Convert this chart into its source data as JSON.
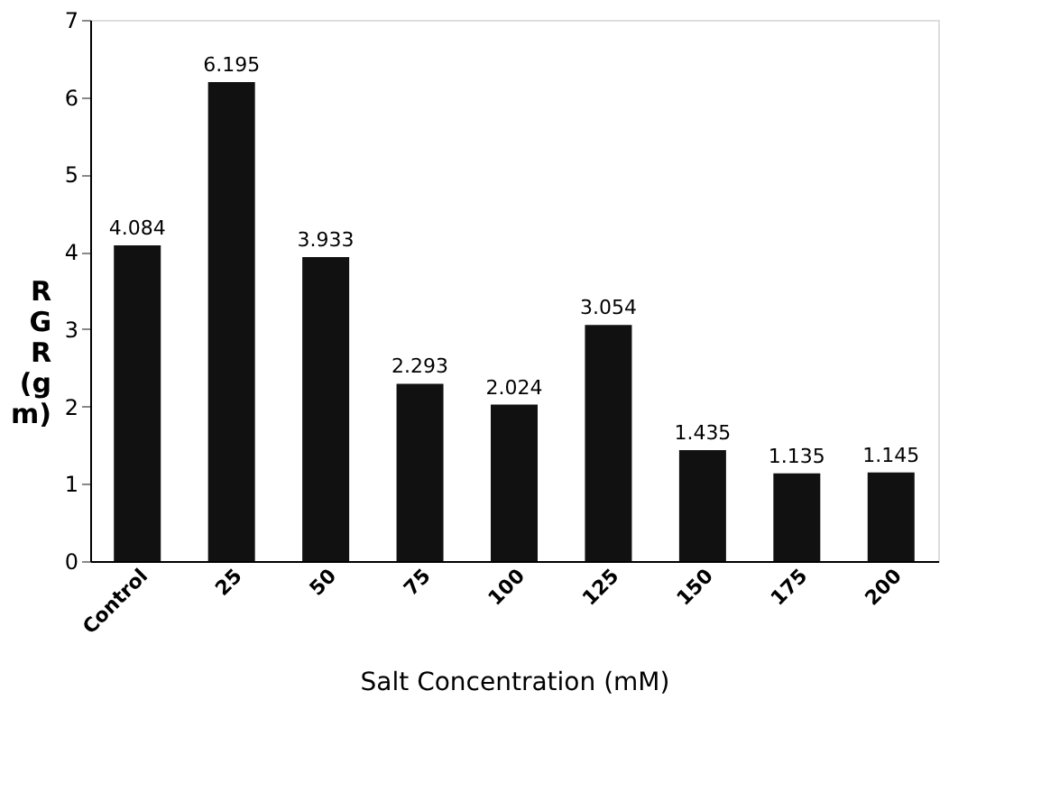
{
  "chart_data": {
    "type": "bar",
    "xlabel": "Salt Concentration (mM)",
    "ylabel": "R G R (g m)",
    "categories": [
      "Control",
      "25",
      "50",
      "75",
      "100",
      "125",
      "150",
      "175",
      "200"
    ],
    "values": [
      4.084,
      6.195,
      3.933,
      2.293,
      2.024,
      3.054,
      1.435,
      1.135,
      1.145
    ],
    "color": "#111111",
    "ylim": [
      0,
      7
    ],
    "yticks": [
      0,
      1,
      2,
      3,
      4,
      5,
      6,
      7
    ],
    "grid": false,
    "data_labels": true
  }
}
